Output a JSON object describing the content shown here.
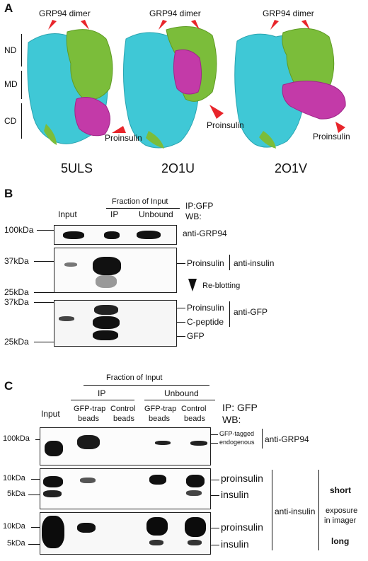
{
  "panelA": {
    "letter": "A",
    "dimer_label": "GRP94 dimer",
    "domains": [
      "ND",
      "MD",
      "CD"
    ],
    "proinsulin_label": "Proinsulin",
    "structures": [
      "5ULS",
      "2O1U",
      "2O1V"
    ],
    "colors": {
      "monomer1": "#3fc8d6",
      "monomer2": "#7bbd3a",
      "proinsulin": "#c33aa8",
      "arrow": "#e8252b"
    }
  },
  "panelB": {
    "letter": "B",
    "fraction_header": "Fraction of Input",
    "lanes": [
      "Input",
      "IP",
      "Unbound"
    ],
    "ip_label": "IP:GFP",
    "wb_label": "WB:",
    "markers": {
      "m100": "100kDa",
      "m37a": "37kDa",
      "m25a": "25kDa",
      "m37b": "37kDa",
      "m25b": "25kDa"
    },
    "band_labels": {
      "proinsulin1": "Proinsulin",
      "proinsulin2": "Proinsulin",
      "cpeptide": "C-peptide",
      "gfp": "GFP"
    },
    "antibodies": {
      "grp94": "anti-GRP94",
      "insulin": "anti-insulin",
      "gfp": "anti-GFP"
    },
    "reblotting": "Re-blotting"
  },
  "panelC": {
    "letter": "C",
    "fraction_header": "Fraction of Input",
    "group_ip": "IP",
    "group_unbound": "Unbound",
    "input_label": "Input",
    "lane_labels": [
      [
        "GFP-trap",
        "beads"
      ],
      [
        "Control",
        "beads"
      ],
      [
        "GFP-trap",
        "beads"
      ],
      [
        "Control",
        "beads"
      ]
    ],
    "ip_label": "IP: GFP",
    "wb_label": "WB:",
    "markers": {
      "m100": "100kDa",
      "m10a": "10kDa",
      "m5a": "5kDa",
      "m10b": "10kDa",
      "m5b": "5kDa"
    },
    "band_labels": {
      "gfp_tagged": "GFP-tagged",
      "endogenous": "endogenous",
      "proinsulin1": "proinsulin",
      "insulin1": "insulin",
      "proinsulin2": "proinsulin",
      "insulin2": "insulin"
    },
    "antibodies": {
      "grp94": "anti-GRP94",
      "insulin": "anti-insulin"
    },
    "exposure": {
      "short": "short",
      "line1": "exposure",
      "line2": "in imager",
      "long": "long"
    }
  }
}
